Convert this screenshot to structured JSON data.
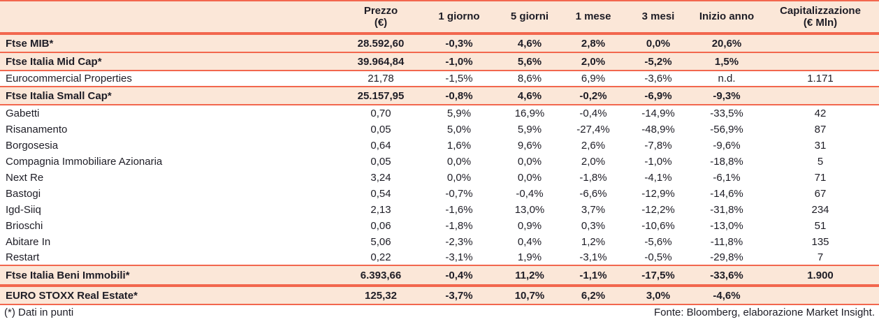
{
  "colors": {
    "rule_line": "#F2674E",
    "highlight_row_bg": "#FBE7D8",
    "text": "#1E1D26"
  },
  "table": {
    "columns": [
      {
        "key": "prezzo",
        "label": "Prezzo",
        "sublabel": "(€)"
      },
      {
        "key": "un_giorno",
        "label": "1 giorno",
        "sublabel": ""
      },
      {
        "key": "cinque_giorni",
        "label": "5 giorni",
        "sublabel": ""
      },
      {
        "key": "un_mese",
        "label": "1 mese",
        "sublabel": ""
      },
      {
        "key": "tre_mesi",
        "label": "3 mesi",
        "sublabel": ""
      },
      {
        "key": "inizio_anno",
        "label": "Inizio anno",
        "sublabel": ""
      },
      {
        "key": "capitalizzazione",
        "label": "Capitalizzazione",
        "sublabel": "(€ Mln)"
      }
    ],
    "rows": [
      {
        "name": "Ftse MIB*",
        "highlight": true,
        "rule_below": "single",
        "values": [
          "28.592,60",
          "-0,3%",
          "4,6%",
          "2,8%",
          "0,0%",
          "20,6%",
          ""
        ]
      },
      {
        "name": "Ftse Italia Mid Cap*",
        "highlight": true,
        "rule_below": "single",
        "values": [
          "39.964,84",
          "-1,0%",
          "5,6%",
          "2,0%",
          "-5,2%",
          "1,5%",
          ""
        ]
      },
      {
        "name": "Eurocommercial Properties",
        "highlight": false,
        "rule_below": "single",
        "values": [
          "21,78",
          "-1,5%",
          "8,6%",
          "6,9%",
          "-3,6%",
          "n.d.",
          "1.171"
        ]
      },
      {
        "name": "Ftse Italia Small Cap*",
        "highlight": true,
        "rule_below": "single",
        "values": [
          "25.157,95",
          "-0,8%",
          "4,6%",
          "-0,2%",
          "-6,9%",
          "-9,3%",
          ""
        ]
      },
      {
        "name": "Gabetti",
        "highlight": false,
        "rule_below": "none",
        "values": [
          "0,70",
          "5,9%",
          "16,9%",
          "-0,4%",
          "-14,9%",
          "-33,5%",
          "42"
        ]
      },
      {
        "name": "Risanamento",
        "highlight": false,
        "rule_below": "none",
        "values": [
          "0,05",
          "5,0%",
          "5,9%",
          "-27,4%",
          "-48,9%",
          "-56,9%",
          "87"
        ]
      },
      {
        "name": "Borgosesia",
        "highlight": false,
        "rule_below": "none",
        "values": [
          "0,64",
          "1,6%",
          "9,6%",
          "2,6%",
          "-7,8%",
          "-9,6%",
          "31"
        ]
      },
      {
        "name": "Compagnia Immobiliare Azionaria",
        "highlight": false,
        "rule_below": "none",
        "values": [
          "0,05",
          "0,0%",
          "0,0%",
          "2,0%",
          "-1,0%",
          "-18,8%",
          "5"
        ]
      },
      {
        "name": "Next Re",
        "highlight": false,
        "rule_below": "none",
        "values": [
          "3,24",
          "0,0%",
          "0,0%",
          "-1,8%",
          "-4,1%",
          "-6,1%",
          "71"
        ]
      },
      {
        "name": "Bastogi",
        "highlight": false,
        "rule_below": "none",
        "values": [
          "0,54",
          "-0,7%",
          "-0,4%",
          "-6,6%",
          "-12,9%",
          "-14,6%",
          "67"
        ]
      },
      {
        "name": "Igd-Siiq",
        "highlight": false,
        "rule_below": "none",
        "values": [
          "2,13",
          "-1,6%",
          "13,0%",
          "3,7%",
          "-12,2%",
          "-31,8%",
          "234"
        ]
      },
      {
        "name": "Brioschi",
        "highlight": false,
        "rule_below": "none",
        "values": [
          "0,06",
          "-1,8%",
          "0,9%",
          "0,3%",
          "-10,6%",
          "-13,0%",
          "51"
        ]
      },
      {
        "name": "Abitare In",
        "highlight": false,
        "rule_below": "none",
        "values": [
          "5,06",
          "-2,3%",
          "0,4%",
          "1,2%",
          "-5,6%",
          "-11,8%",
          "135"
        ]
      },
      {
        "name": "Restart",
        "highlight": false,
        "rule_below": "single",
        "values": [
          "0,22",
          "-3,1%",
          "1,9%",
          "-3,1%",
          "-0,5%",
          "-29,8%",
          "7"
        ]
      },
      {
        "name": "Ftse Italia Beni Immobili*",
        "highlight": true,
        "rule_below": "double",
        "values": [
          "6.393,66",
          "-0,4%",
          "11,2%",
          "-1,1%",
          "-17,5%",
          "-33,6%",
          "1.900"
        ]
      },
      {
        "name": "EURO STOXX Real Estate*",
        "highlight": true,
        "rule_below": "single",
        "values": [
          "125,32",
          "-3,7%",
          "10,7%",
          "6,2%",
          "3,0%",
          "-4,6%",
          ""
        ]
      }
    ]
  },
  "footer": {
    "note": "(*) Dati in punti",
    "source": "Fonte: Bloomberg, elaborazione Market Insight."
  }
}
